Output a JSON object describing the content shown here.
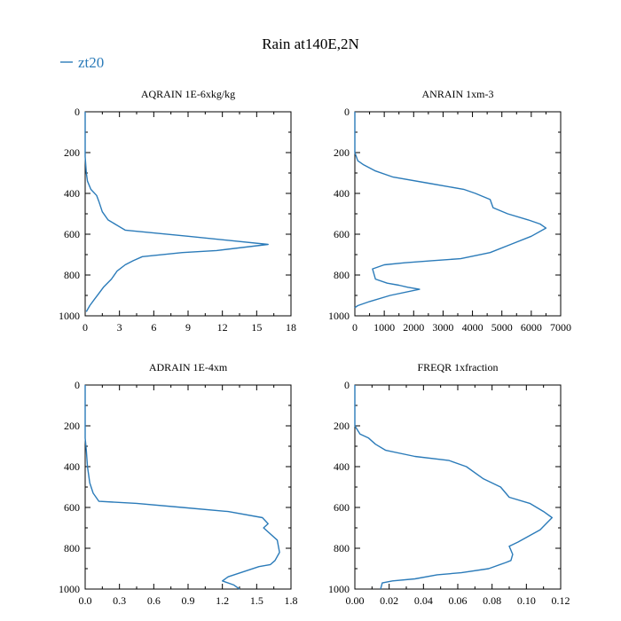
{
  "figure": {
    "title": "Rain at140E,2N",
    "legend": [
      {
        "label": "zt20",
        "color": "#2b7bb9",
        "placement": "top-left"
      }
    ]
  },
  "chart_data": [
    {
      "type": "line",
      "title": "AQRAIN  1E-6xkg/kg",
      "series_name": "zt20",
      "color": "#2b7bb9",
      "xlim": [
        0,
        18
      ],
      "ylim": [
        1000,
        0
      ],
      "xticks": [
        0,
        3,
        6,
        9,
        12,
        15,
        18
      ],
      "xtick_labels": [
        "0",
        "3",
        "6",
        "9",
        "12",
        "15",
        "18"
      ],
      "yticks": [
        0,
        200,
        400,
        600,
        800,
        1000
      ],
      "ytick_labels": [
        "0",
        "200",
        "400",
        "600",
        "800",
        "1000"
      ],
      "x": [
        0,
        0,
        0.1,
        0.2,
        0.5,
        1.0,
        1.2,
        1.5,
        2.0,
        3.5,
        9.0,
        16.0,
        11.5,
        8.5,
        5.0,
        4.2,
        3.5,
        2.8,
        2.3,
        1.6,
        1.2,
        0.8,
        0.4,
        0.1
      ],
      "y": [
        0,
        220,
        300,
        340,
        380,
        410,
        440,
        490,
        530,
        580,
        610,
        650,
        680,
        690,
        710,
        730,
        750,
        780,
        820,
        860,
        890,
        920,
        950,
        980
      ]
    },
    {
      "type": "line",
      "title": "ANRAIN  1xm-3",
      "series_name": "zt20",
      "color": "#2b7bb9",
      "xlim": [
        0,
        7000
      ],
      "ylim": [
        1000,
        0
      ],
      "xticks": [
        0,
        1000,
        2000,
        3000,
        4000,
        5000,
        6000,
        7000
      ],
      "xtick_labels": [
        "0",
        "1000",
        "2000",
        "3000",
        "4000",
        "5000",
        "6000",
        "7000"
      ],
      "yticks": [
        0,
        200,
        400,
        600,
        800,
        1000
      ],
      "ytick_labels": [
        "0",
        "200",
        "400",
        "600",
        "800",
        "1000"
      ],
      "x": [
        0,
        0,
        100,
        300,
        700,
        1300,
        2500,
        3700,
        4100,
        4600,
        4700,
        5200,
        5900,
        6300,
        6500,
        6000,
        5300,
        4600,
        3600,
        2600,
        1700,
        1000,
        600,
        700,
        1100,
        1500,
        1800,
        2200,
        1200,
        500,
        100,
        0
      ],
      "y": [
        0,
        200,
        240,
        260,
        290,
        320,
        350,
        380,
        400,
        430,
        470,
        500,
        530,
        550,
        570,
        610,
        650,
        690,
        720,
        730,
        740,
        750,
        770,
        820,
        840,
        850,
        860,
        870,
        900,
        930,
        950,
        960
      ]
    },
    {
      "type": "line",
      "title": "ADRAIN  1E-4xm",
      "series_name": "zt20",
      "color": "#2b7bb9",
      "xlim": [
        0.0,
        1.8
      ],
      "ylim": [
        1000,
        0
      ],
      "xticks": [
        0.0,
        0.3,
        0.6,
        0.9,
        1.2,
        1.5,
        1.8
      ],
      "xtick_labels": [
        "0.0",
        "0.3",
        "0.6",
        "0.9",
        "1.2",
        "1.5",
        "1.8"
      ],
      "yticks": [
        0,
        200,
        400,
        600,
        800,
        1000
      ],
      "ytick_labels": [
        "0",
        "200",
        "400",
        "600",
        "800",
        "1000"
      ],
      "x": [
        0,
        0,
        0.01,
        0.02,
        0.04,
        0.07,
        0.12,
        0.45,
        0.85,
        1.25,
        1.55,
        1.6,
        1.56,
        1.68,
        1.7,
        1.66,
        1.62,
        1.52,
        1.25,
        1.2,
        1.3,
        1.35
      ],
      "y": [
        0,
        260,
        320,
        400,
        480,
        530,
        570,
        580,
        600,
        620,
        650,
        680,
        700,
        760,
        820,
        860,
        880,
        890,
        940,
        960,
        980,
        1000
      ]
    },
    {
      "type": "line",
      "title": "FREQR  1xfraction",
      "series_name": "zt20",
      "color": "#2b7bb9",
      "xlim": [
        0.0,
        0.12
      ],
      "ylim": [
        1000,
        0
      ],
      "xticks": [
        0.0,
        0.02,
        0.04,
        0.06,
        0.08,
        0.1,
        0.12
      ],
      "xtick_labels": [
        "0.00",
        "0.02",
        "0.04",
        "0.06",
        "0.08",
        "0.10",
        "0.12"
      ],
      "yticks": [
        0,
        200,
        400,
        600,
        800,
        1000
      ],
      "ytick_labels": [
        "0",
        "200",
        "400",
        "600",
        "800",
        "1000"
      ],
      "x": [
        0,
        0,
        0.003,
        0.008,
        0.012,
        0.018,
        0.035,
        0.055,
        0.065,
        0.075,
        0.085,
        0.09,
        0.102,
        0.11,
        0.115,
        0.108,
        0.095,
        0.09,
        0.092,
        0.091,
        0.088,
        0.078,
        0.062,
        0.048,
        0.035,
        0.022,
        0.016,
        0.015
      ],
      "y": [
        0,
        200,
        240,
        260,
        290,
        320,
        350,
        370,
        400,
        460,
        500,
        550,
        580,
        620,
        650,
        710,
        770,
        790,
        830,
        860,
        870,
        900,
        920,
        930,
        950,
        960,
        970,
        1000
      ]
    }
  ]
}
